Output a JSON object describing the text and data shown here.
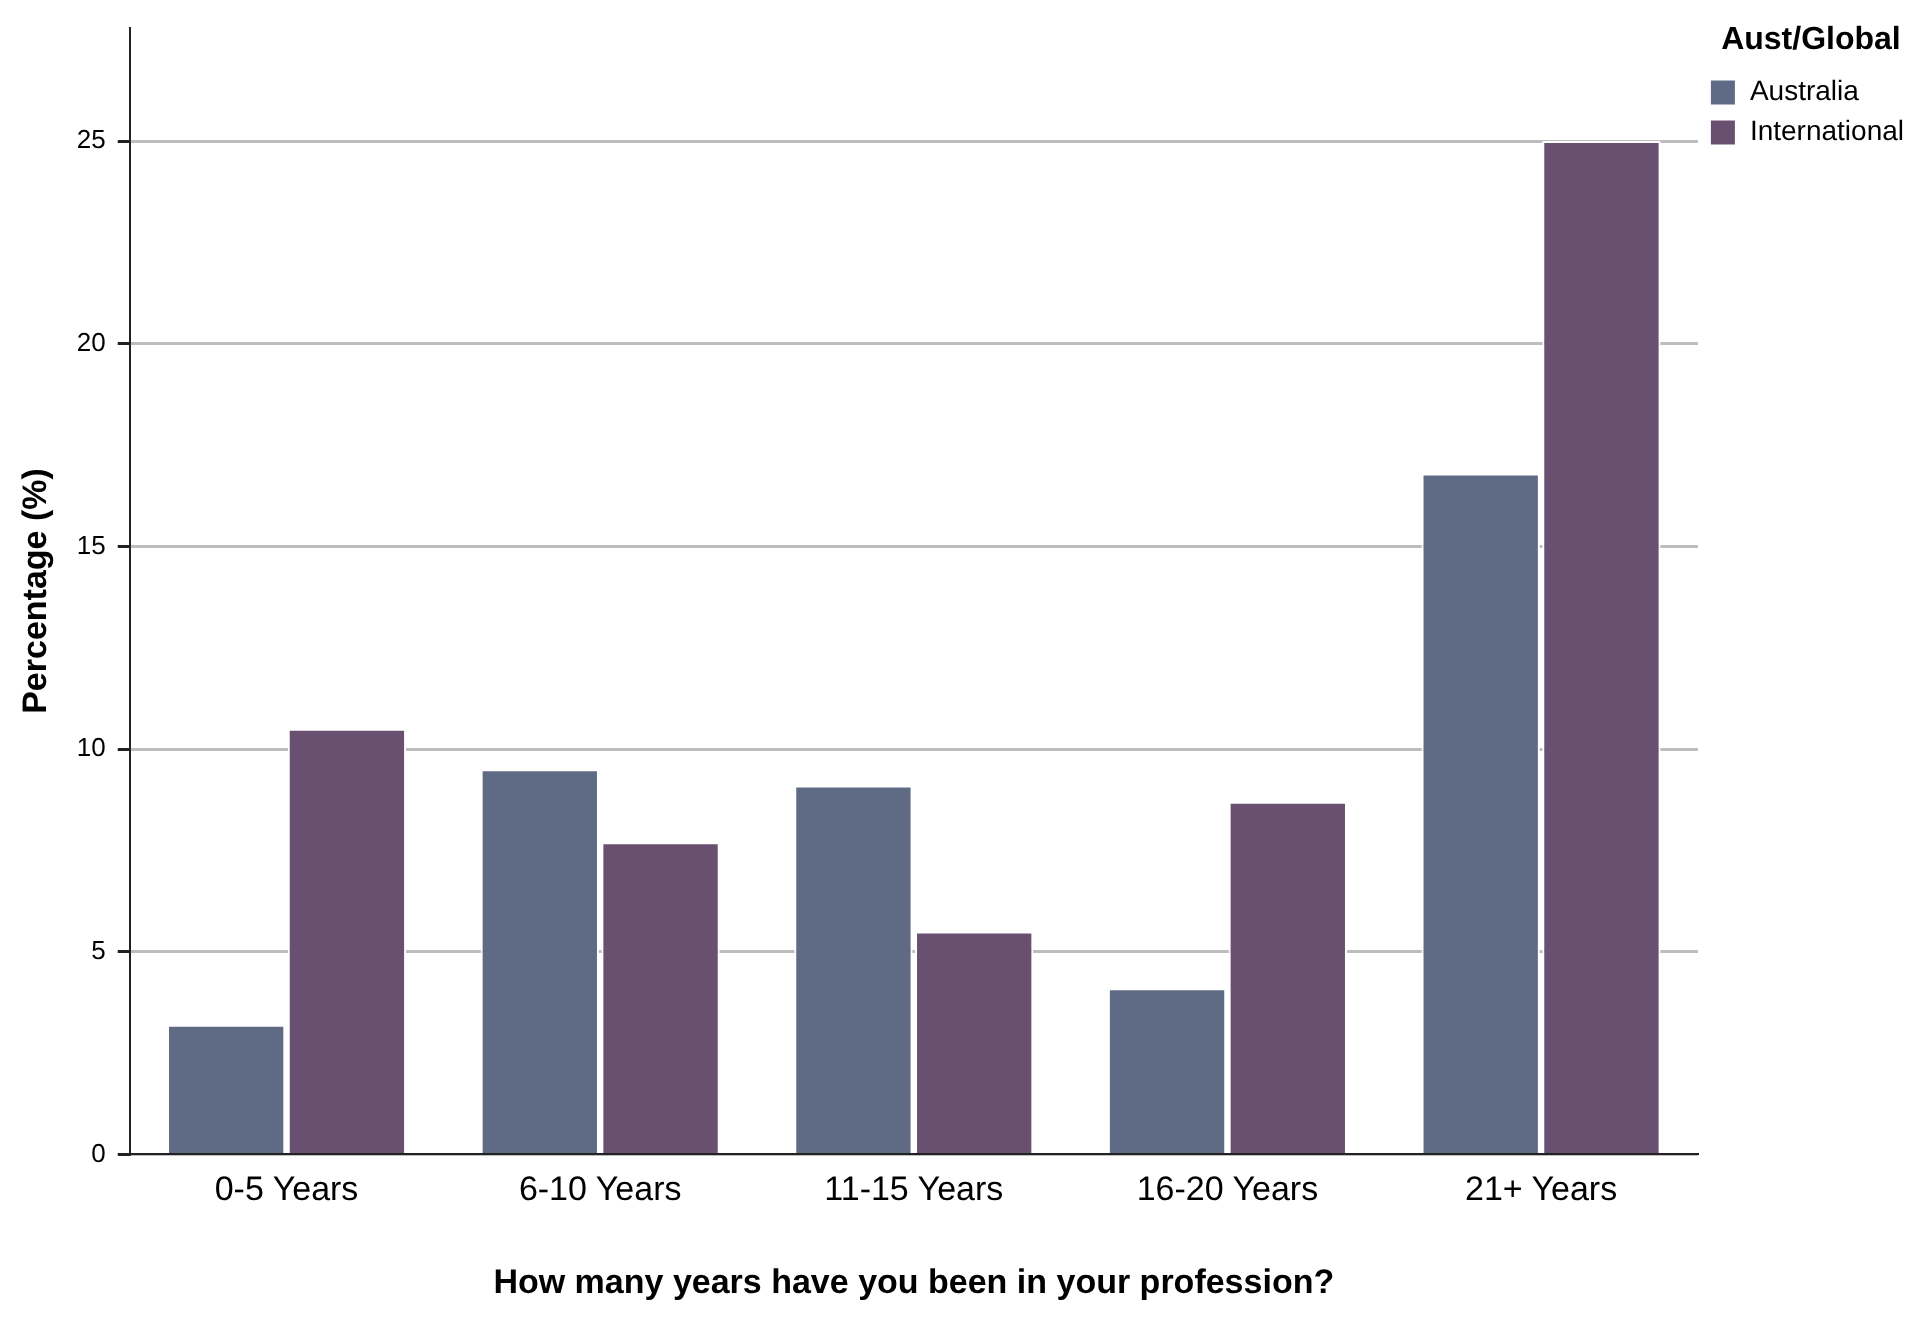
{
  "chart_data": {
    "type": "bar",
    "xlabel": "How many years have you been in your profession?",
    "ylabel": "Percentage (%)",
    "legend_title": "Aust/Global",
    "categories": [
      "0-5 Years",
      "6-10 Years",
      "11-15 Years",
      "16-20 Years",
      "21+ Years"
    ],
    "series": [
      {
        "name": "Australia",
        "color": "#5f6a85",
        "values": [
          3.2,
          9.5,
          9.1,
          4.1,
          16.8
        ]
      },
      {
        "name": "International",
        "color": "#6a5070",
        "values": [
          10.5,
          7.7,
          5.5,
          8.7,
          25
        ]
      }
    ],
    "ylim": [
      0,
      27.8
    ],
    "yticks": [
      0,
      5,
      10,
      15,
      20,
      25
    ],
    "grid": "y",
    "legend": "top right"
  }
}
